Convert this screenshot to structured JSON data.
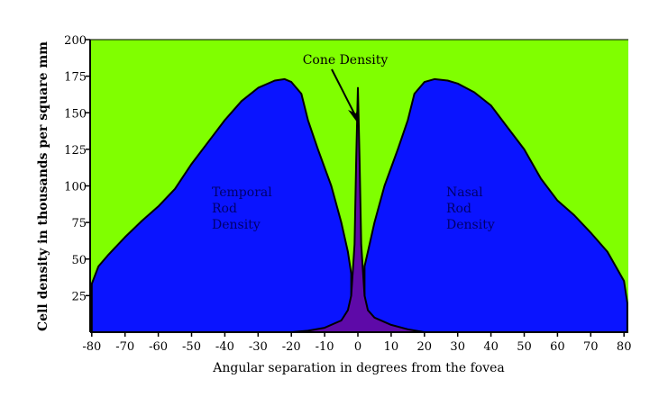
{
  "chart_data": {
    "type": "area",
    "title": "",
    "xlabel": "Angular separation in degrees from the fovea",
    "ylabel": "Cell density in thousands per square mm",
    "xlim": [
      -80,
      80
    ],
    "ylim": [
      0,
      200
    ],
    "xticks": [
      -80,
      -70,
      -60,
      -50,
      -40,
      -30,
      -20,
      -10,
      0,
      10,
      20,
      30,
      40,
      50,
      60,
      70,
      80
    ],
    "yticks": [
      25,
      50,
      75,
      100,
      125,
      150,
      175,
      200
    ],
    "colors": {
      "background": "#80ff00",
      "rod": "#0a14ff",
      "cone": "#5e0aa8",
      "outline": "#000000"
    },
    "series": [
      {
        "name": "Temporal Rod Density",
        "label_lines": [
          "Temporal",
          "Rod",
          "Density"
        ],
        "x": [
          -80,
          -78,
          -75,
          -70,
          -65,
          -60,
          -55,
          -50,
          -45,
          -40,
          -35,
          -30,
          -25,
          -22,
          -20,
          -17,
          -15,
          -12,
          -8,
          -5,
          -3,
          -2,
          -2
        ],
        "y": [
          33,
          45,
          53,
          65,
          76,
          86,
          98,
          115,
          130,
          145,
          158,
          167,
          172,
          173,
          171,
          163,
          145,
          125,
          100,
          75,
          55,
          40,
          0
        ]
      },
      {
        "name": "Nasal Rod Density",
        "label_lines": [
          "Nasal",
          "Rod",
          "Density"
        ],
        "x": [
          2,
          2,
          3,
          5,
          8,
          12,
          15,
          17,
          20,
          23,
          27,
          30,
          35,
          40,
          45,
          50,
          55,
          60,
          65,
          70,
          75,
          80,
          81,
          81
        ],
        "y": [
          0,
          45,
          55,
          75,
          100,
          125,
          145,
          163,
          171,
          173,
          172,
          170,
          164,
          155,
          140,
          125,
          105,
          90,
          80,
          68,
          55,
          35,
          20,
          0
        ]
      },
      {
        "name": "Cone Density",
        "x": [
          -20,
          -15,
          -10,
          -5,
          -3,
          -2,
          -1,
          -0.5,
          0,
          0.5,
          1,
          2,
          3,
          5,
          10,
          15,
          20
        ],
        "y": [
          0,
          1,
          3,
          8,
          15,
          25,
          60,
          120,
          167,
          120,
          60,
          25,
          15,
          10,
          5,
          2,
          0
        ]
      }
    ],
    "annotations": [
      {
        "text": "Cone Density",
        "points_to": [
          0,
          140
        ]
      }
    ]
  }
}
